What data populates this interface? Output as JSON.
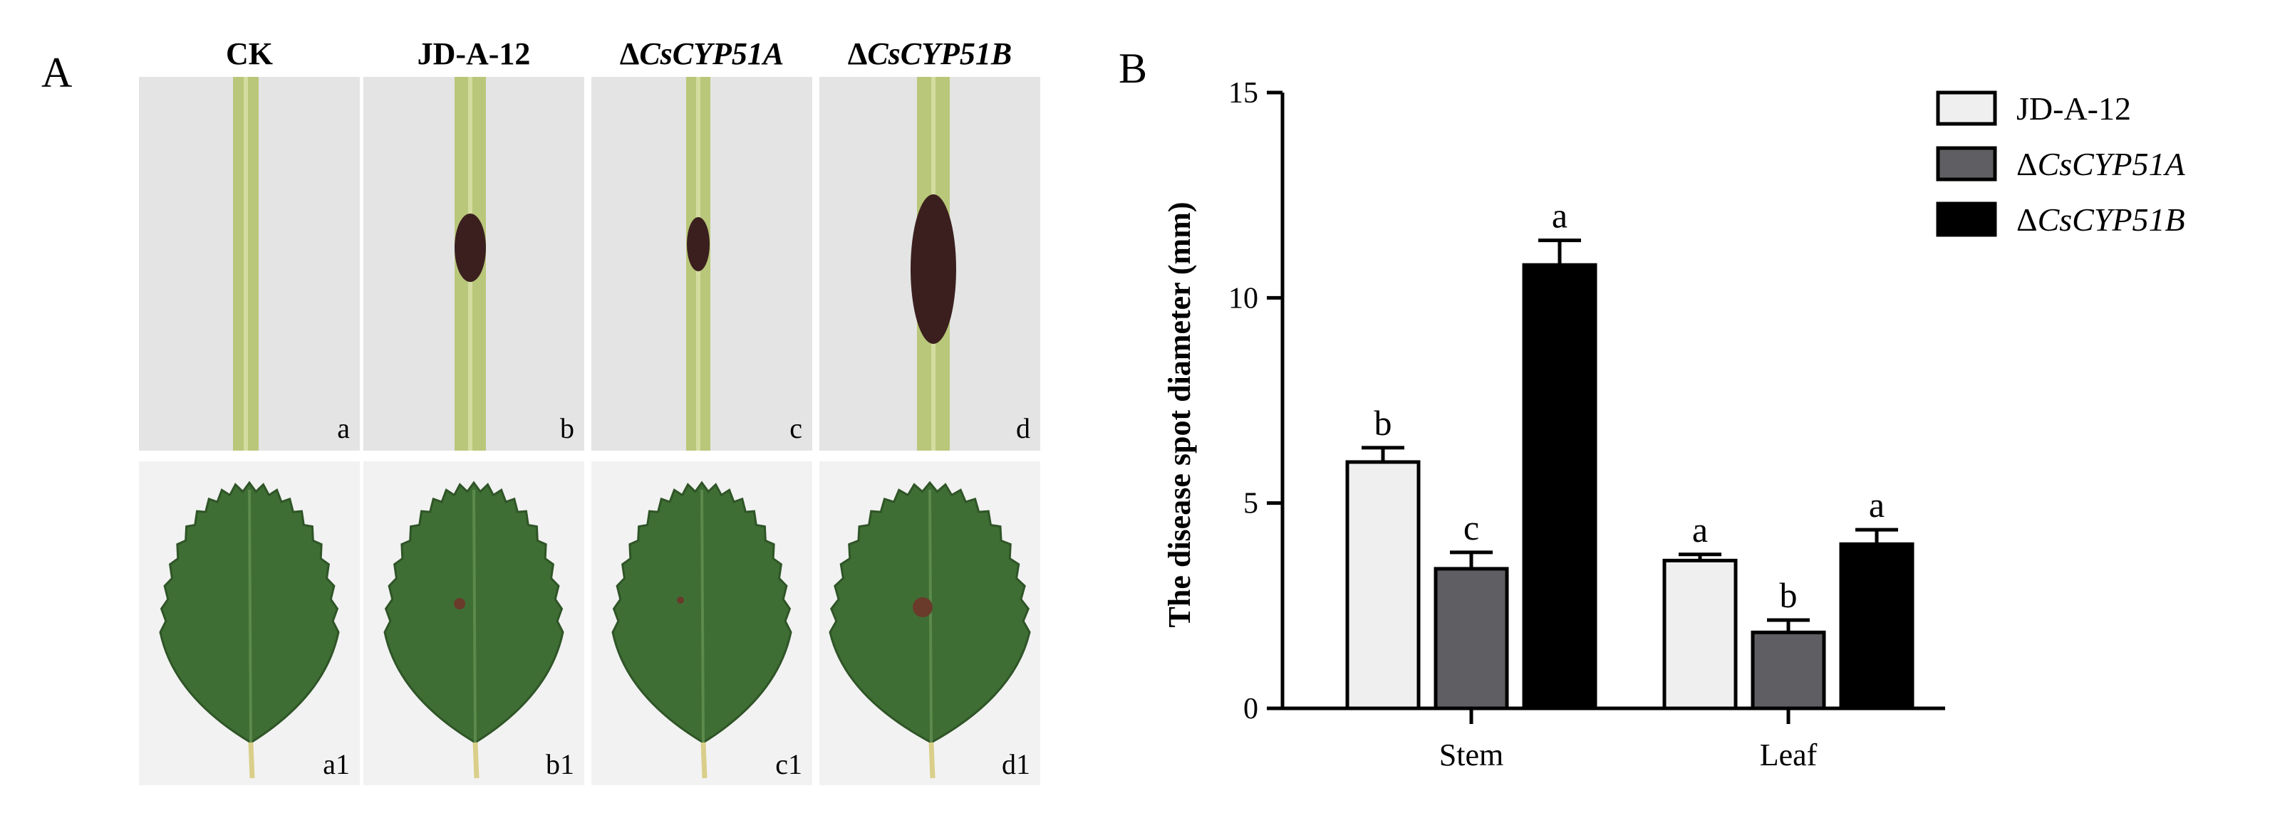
{
  "panel_a": {
    "letter": "A",
    "columns": [
      {
        "title_prefix": "",
        "title_italic": "CK",
        "plain": true
      },
      {
        "title_prefix": "",
        "title_italic": "JD-A-12",
        "plain": true
      },
      {
        "title_prefix": "Δ",
        "title_italic": "CsCYP51A",
        "plain": false
      },
      {
        "title_prefix": "Δ",
        "title_italic": "CsCYP51B",
        "plain": false
      }
    ],
    "stem_labels": [
      "a",
      "b",
      "c",
      "d"
    ],
    "leaf_labels": [
      "a1",
      "b1",
      "c1",
      "d1"
    ]
  },
  "panel_b": {
    "letter": "B"
  },
  "colors": {
    "jd": "#efefef",
    "csa": "#5f5f63",
    "csb": "#000000",
    "photo_bg_stem": "#e4e4e4",
    "photo_bg_leaf": "#f2f2f2",
    "stem_green": "#b9c77a",
    "leaf_green": "#3f6e34",
    "lesion": "#3b1f1f"
  },
  "chart_data": {
    "type": "bar",
    "categories": [
      "Stem",
      "Leaf"
    ],
    "ylabel": "The disease spot diameter (mm)",
    "ylim": [
      0,
      15
    ],
    "yticks": [
      0,
      5,
      10,
      15
    ],
    "legend_position": "top-right",
    "series": [
      {
        "name_prefix": "",
        "name_italic": "JD-A-12",
        "italic": false,
        "values": [
          6.0,
          3.6
        ],
        "errors": [
          0.35,
          0.15
        ],
        "letters": [
          "b",
          "a"
        ]
      },
      {
        "name_prefix": "Δ",
        "name_italic": "CsCYP51A",
        "italic": true,
        "values": [
          3.4,
          1.85
        ],
        "errors": [
          0.4,
          0.3
        ],
        "letters": [
          "c",
          "b"
        ]
      },
      {
        "name_prefix": "Δ",
        "name_italic": "CsCYP51B",
        "italic": true,
        "values": [
          10.8,
          4.0
        ],
        "errors": [
          0.6,
          0.35
        ],
        "letters": [
          "a",
          "a"
        ]
      }
    ]
  }
}
